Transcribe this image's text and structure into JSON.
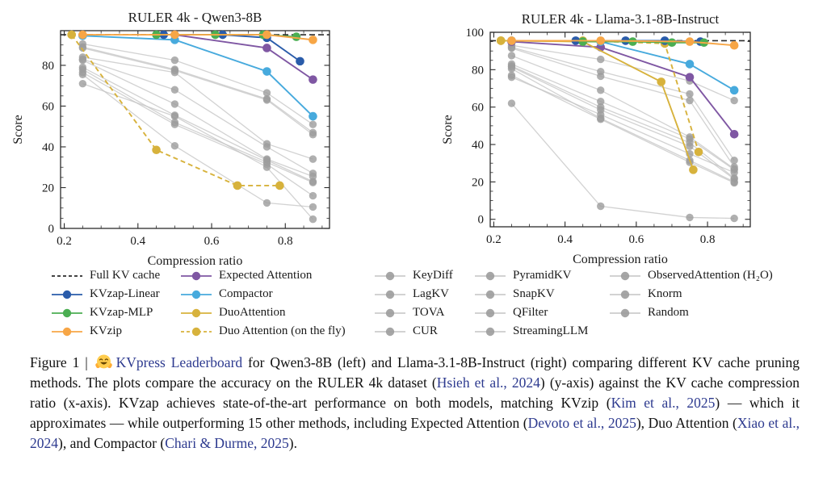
{
  "figure": {
    "caption": {
      "segments": [
        {
          "t": "Figure 1 | "
        },
        {
          "emoji": true,
          "name": "hugging-face-emoji"
        },
        {
          "t": "KVpress Leaderboard",
          "link": true
        },
        {
          "t": " for Qwen3-8B (left) and Llama-3.1-8B-Instruct (right) comparing different KV cache pruning methods. The plots compare the accuracy on the RULER 4k dataset ("
        },
        {
          "t": "Hsieh et al., 2024",
          "link": true
        },
        {
          "t": ") (y-axis) against the KV cache compression ratio (x-axis). KVzap achieves state-of-the-art performance on both models, matching KVzip ("
        },
        {
          "t": "Kim et al., 2025",
          "link": true
        },
        {
          "t": ") — which it approximates — while outperforming 15 other methods, including Expected Attention ("
        },
        {
          "t": "Devoto et al., 2025",
          "link": true
        },
        {
          "t": "), Duo Attention ("
        },
        {
          "t": "Xiao et al., 2024",
          "link": true
        },
        {
          "t": "), and Compactor ("
        },
        {
          "t": "Chari & Durme, 2025",
          "link": true
        },
        {
          "t": ")."
        }
      ],
      "link_color": "#2d3a8f"
    },
    "legend": {
      "position": "bottom",
      "columns": [
        [
          {
            "label": "Full KV cache",
            "color": "#2b2b2b",
            "dash": true,
            "marker": false
          },
          {
            "label": "KVzap-Linear",
            "color": "#2a5caa"
          },
          {
            "label": "KVzap-MLP",
            "color": "#4bae52"
          },
          {
            "label": "KVzip",
            "color": "#f7a646"
          }
        ],
        [
          {
            "label": "Expected Attention",
            "color": "#7f57a3"
          },
          {
            "label": "Compactor",
            "color": "#47aadd"
          },
          {
            "label": "DuoAttention",
            "color": "#d7b23c"
          },
          {
            "label": "Duo Attention (on the fly)",
            "color": "#d7b23c",
            "dash": true
          }
        ],
        [
          {
            "label": "KeyDiff",
            "color": "#c3c3c3",
            "marker_color": "#9c9c9c",
            "gray": true
          },
          {
            "label": "LagKV",
            "color": "#c3c3c3",
            "marker_color": "#9c9c9c",
            "gray": true
          },
          {
            "label": "TOVA",
            "color": "#c3c3c3",
            "marker_color": "#9c9c9c",
            "gray": true
          },
          {
            "label": "CUR",
            "color": "#c3c3c3",
            "marker_color": "#9c9c9c",
            "gray": true
          }
        ],
        [
          {
            "label": "PyramidKV",
            "color": "#c3c3c3",
            "marker_color": "#9c9c9c",
            "gray": true
          },
          {
            "label": "SnapKV",
            "color": "#c3c3c3",
            "marker_color": "#9c9c9c",
            "gray": true
          },
          {
            "label": "QFilter",
            "color": "#c3c3c3",
            "marker_color": "#9c9c9c",
            "gray": true
          },
          {
            "label": "StreamingLLM",
            "color": "#c3c3c3",
            "marker_color": "#9c9c9c",
            "gray": true
          }
        ],
        [
          {
            "label": "ObservedAttention (H₂O)",
            "color": "#c3c3c3",
            "marker_color": "#9c9c9c",
            "gray": true
          },
          {
            "label": "Knorm",
            "color": "#c3c3c3",
            "marker_color": "#9c9c9c",
            "gray": true
          },
          {
            "label": "Random",
            "color": "#c3c3c3",
            "marker_color": "#9c9c9c",
            "gray": true
          }
        ]
      ]
    }
  },
  "chart_data": [
    {
      "type": "line",
      "title": "RULER 4k - Qwen3-8B",
      "xlabel": "Compression ratio",
      "ylabel": "Score",
      "xlim": [
        0.19,
        0.92
      ],
      "ylim": [
        0,
        97
      ],
      "xticks": [
        0.2,
        0.4,
        0.6,
        0.8
      ],
      "xtick_labels": [
        "0.2",
        "0.4",
        "0.6",
        "0.8"
      ],
      "yticks": [
        0,
        20,
        40,
        60,
        80
      ],
      "ytick_labels": [
        "0",
        "20",
        "40",
        "60",
        "80"
      ],
      "grid": false,
      "reference": {
        "label": "Full KV cache",
        "y": 95,
        "color": "#2b2b2b",
        "style": "dashed"
      },
      "series": [
        {
          "name": "KVzap-Linear",
          "color": "#2a5caa",
          "z": 7,
          "x": [
            0.47,
            0.63,
            0.75,
            0.84
          ],
          "y": [
            95,
            95,
            93.5,
            82
          ]
        },
        {
          "name": "KVzap-MLP",
          "color": "#4bae52",
          "z": 8,
          "x": [
            0.45,
            0.61,
            0.74,
            0.83
          ],
          "y": [
            95,
            95,
            95,
            94
          ]
        },
        {
          "name": "KVzip",
          "color": "#f7a646",
          "z": 9,
          "x": [
            0.25,
            0.5,
            0.75,
            0.875
          ],
          "y": [
            95,
            95,
            95,
            92.5
          ]
        },
        {
          "name": "Expected Attention",
          "color": "#7f57a3",
          "z": 3,
          "x": [
            0.5,
            0.75,
            0.875
          ],
          "y": [
            95,
            88.5,
            73
          ]
        },
        {
          "name": "Compactor",
          "color": "#47aadd",
          "z": 4,
          "x": [
            0.25,
            0.5,
            0.75,
            0.875
          ],
          "y": [
            94.5,
            92.5,
            77,
            55
          ]
        },
        {
          "name": "DuoAttention",
          "color": "#d7b23c",
          "z": 5,
          "x": [
            0.22
          ],
          "y": [
            95
          ]
        },
        {
          "name": "Duo Attention (on the fly)",
          "color": "#d7b23c",
          "z": 6,
          "dash": true,
          "x": [
            0.22,
            0.45,
            0.67,
            0.785
          ],
          "y": [
            95,
            38.5,
            21,
            21
          ]
        },
        {
          "name": "KeyDiff",
          "gray": true,
          "color": "#c3c3c3",
          "marker_color": "#9c9c9c",
          "z": 1,
          "x": [
            0.25,
            0.5,
            0.75,
            0.875
          ],
          "y": [
            90.5,
            82.5,
            66.5,
            51
          ]
        },
        {
          "name": "LagKV",
          "gray": true,
          "color": "#c3c3c3",
          "marker_color": "#9c9c9c",
          "z": 1,
          "x": [
            0.25,
            0.5,
            0.75,
            0.875
          ],
          "y": [
            89,
            78,
            63.5,
            47
          ]
        },
        {
          "name": "TOVA",
          "gray": true,
          "color": "#c3c3c3",
          "marker_color": "#9c9c9c",
          "z": 1,
          "x": [
            0.25,
            0.5,
            0.75,
            0.875
          ],
          "y": [
            88.5,
            77.5,
            63,
            46
          ]
        },
        {
          "name": "CUR",
          "gray": true,
          "color": "#c3c3c3",
          "marker_color": "#9c9c9c",
          "z": 1,
          "x": [
            0.25,
            0.5,
            0.75,
            0.875
          ],
          "y": [
            84,
            76.5,
            41.5,
            34
          ]
        },
        {
          "name": "PyramidKV",
          "gray": true,
          "color": "#c3c3c3",
          "marker_color": "#9c9c9c",
          "z": 1,
          "x": [
            0.25,
            0.5,
            0.75,
            0.875
          ],
          "y": [
            83,
            68,
            40,
            27
          ]
        },
        {
          "name": "SnapKV",
          "gray": true,
          "color": "#c3c3c3",
          "marker_color": "#9c9c9c",
          "z": 1,
          "x": [
            0.25,
            0.5,
            0.75,
            0.875
          ],
          "y": [
            82.5,
            61,
            34,
            25.5
          ]
        },
        {
          "name": "QFilter",
          "gray": true,
          "color": "#c3c3c3",
          "marker_color": "#9c9c9c",
          "z": 1,
          "x": [
            0.25,
            0.5,
            0.75,
            0.875
          ],
          "y": [
            79,
            55.5,
            33.5,
            23
          ]
        },
        {
          "name": "StreamingLLM",
          "gray": true,
          "color": "#c3c3c3",
          "marker_color": "#9c9c9c",
          "z": 1,
          "x": [
            0.25,
            0.5,
            0.75,
            0.875
          ],
          "y": [
            75.5,
            40.5,
            12.5,
            10.5
          ]
        },
        {
          "name": "ObservedAttention (H₂O)",
          "gray": true,
          "color": "#c3c3c3",
          "marker_color": "#9c9c9c",
          "z": 1,
          "x": [
            0.25,
            0.5,
            0.75,
            0.875
          ],
          "y": [
            78,
            52,
            32.5,
            22.5
          ]
        },
        {
          "name": "Knorm",
          "gray": true,
          "color": "#c3c3c3",
          "marker_color": "#9c9c9c",
          "z": 1,
          "x": [
            0.25,
            0.5,
            0.75,
            0.875
          ],
          "y": [
            76.5,
            51,
            31.5,
            16
          ]
        },
        {
          "name": "Random",
          "gray": true,
          "color": "#c3c3c3",
          "marker_color": "#9c9c9c",
          "z": 1,
          "x": [
            0.25,
            0.5,
            0.75,
            0.875
          ],
          "y": [
            71,
            55,
            30,
            4.5
          ]
        }
      ]
    },
    {
      "type": "line",
      "title": "RULER 4k - Llama-3.1-8B-Instruct",
      "xlabel": "Compression ratio",
      "ylabel": "Score",
      "xlim": [
        0.19,
        0.92
      ],
      "ylim": [
        -4,
        100
      ],
      "xticks": [
        0.2,
        0.4,
        0.6,
        0.8
      ],
      "xtick_labels": [
        "0.2",
        "0.4",
        "0.6",
        "0.8"
      ],
      "yticks": [
        0,
        20,
        40,
        60,
        80,
        100
      ],
      "ytick_labels": [
        "0",
        "20",
        "40",
        "60",
        "80",
        "100"
      ],
      "grid": false,
      "reference": {
        "label": "Full KV cache",
        "y": 95.5,
        "color": "#2b2b2b",
        "style": "dashed"
      },
      "series": [
        {
          "name": "KVzap-Linear",
          "color": "#2a5caa",
          "z": 7,
          "x": [
            0.43,
            0.57,
            0.68,
            0.78
          ],
          "y": [
            95.5,
            95.5,
            95.5,
            95
          ]
        },
        {
          "name": "KVzap-MLP",
          "color": "#4bae52",
          "z": 8,
          "x": [
            0.45,
            0.59,
            0.7,
            0.79
          ],
          "y": [
            95,
            95,
            94.5,
            94.5
          ]
        },
        {
          "name": "KVzip",
          "color": "#f7a646",
          "z": 9,
          "x": [
            0.25,
            0.5,
            0.75,
            0.875
          ],
          "y": [
            95.5,
            95.5,
            95,
            93
          ]
        },
        {
          "name": "Expected Attention",
          "color": "#7f57a3",
          "z": 3,
          "x": [
            0.25,
            0.5,
            0.75,
            0.875
          ],
          "y": [
            95,
            92,
            76,
            45.5
          ]
        },
        {
          "name": "Compactor",
          "color": "#47aadd",
          "z": 4,
          "x": [
            0.25,
            0.5,
            0.75,
            0.875
          ],
          "y": [
            95.5,
            95,
            83,
            69
          ]
        },
        {
          "name": "DuoAttention",
          "color": "#d7b23c",
          "z": 5,
          "x": [
            0.22,
            0.45,
            0.67,
            0.76
          ],
          "y": [
            95.5,
            95,
            73.5,
            26.5
          ]
        },
        {
          "name": "Duo Attention (on the fly)",
          "color": "#d7b23c",
          "z": 6,
          "dash": true,
          "x": [
            0.22,
            0.45,
            0.68,
            0.775
          ],
          "y": [
            95.5,
            95.5,
            94,
            36
          ]
        },
        {
          "name": "KeyDiff",
          "gray": true,
          "color": "#c3c3c3",
          "marker_color": "#9c9c9c",
          "z": 1,
          "x": [
            0.25,
            0.5,
            0.75,
            0.875
          ],
          "y": [
            93,
            85.5,
            74,
            63.5
          ]
        },
        {
          "name": "LagKV",
          "gray": true,
          "color": "#c3c3c3",
          "marker_color": "#9c9c9c",
          "z": 1,
          "x": [
            0.25,
            0.5,
            0.75,
            0.875
          ],
          "y": [
            92,
            79,
            67,
            31.5
          ]
        },
        {
          "name": "TOVA",
          "gray": true,
          "color": "#c3c3c3",
          "marker_color": "#9c9c9c",
          "z": 1,
          "x": [
            0.25,
            0.5,
            0.75,
            0.875
          ],
          "y": [
            91.5,
            76.5,
            63.5,
            28
          ]
        },
        {
          "name": "CUR",
          "gray": true,
          "color": "#c3c3c3",
          "marker_color": "#9c9c9c",
          "z": 1,
          "x": [
            0.25,
            0.5,
            0.75,
            0.875
          ],
          "y": [
            87.5,
            69,
            44,
            27
          ]
        },
        {
          "name": "PyramidKV",
          "gray": true,
          "color": "#c3c3c3",
          "marker_color": "#9c9c9c",
          "z": 1,
          "x": [
            0.25,
            0.5,
            0.75,
            0.875
          ],
          "y": [
            83,
            63,
            43,
            26.5
          ]
        },
        {
          "name": "SnapKV",
          "gray": true,
          "color": "#c3c3c3",
          "marker_color": "#9c9c9c",
          "z": 1,
          "x": [
            0.25,
            0.5,
            0.75,
            0.875
          ],
          "y": [
            82,
            60,
            41,
            22
          ]
        },
        {
          "name": "QFilter",
          "gray": true,
          "color": "#c3c3c3",
          "marker_color": "#9c9c9c",
          "z": 1,
          "x": [
            0.25,
            0.5,
            0.75,
            0.875
          ],
          "y": [
            81.5,
            58.5,
            39,
            21.5
          ]
        },
        {
          "name": "StreamingLLM",
          "gray": true,
          "color": "#c3c3c3",
          "marker_color": "#9c9c9c",
          "z": 1,
          "x": [
            0.25,
            0.5,
            0.75,
            0.875
          ],
          "y": [
            76,
            56,
            35,
            25
          ]
        },
        {
          "name": "ObservedAttention (H₂O)",
          "gray": true,
          "color": "#c3c3c3",
          "marker_color": "#9c9c9c",
          "z": 1,
          "x": [
            0.25,
            0.5,
            0.75,
            0.875
          ],
          "y": [
            80.5,
            54,
            31.5,
            20
          ]
        },
        {
          "name": "Knorm",
          "gray": true,
          "color": "#c3c3c3",
          "marker_color": "#9c9c9c",
          "z": 1,
          "x": [
            0.25,
            0.5,
            0.75,
            0.875
          ],
          "y": [
            77,
            53.5,
            30.5,
            19.5
          ]
        },
        {
          "name": "Random",
          "gray": true,
          "color": "#c3c3c3",
          "marker_color": "#9c9c9c",
          "z": 1,
          "x": [
            0.25,
            0.5,
            0.75,
            0.875
          ],
          "y": [
            62,
            7,
            1,
            0.5
          ]
        }
      ]
    }
  ]
}
